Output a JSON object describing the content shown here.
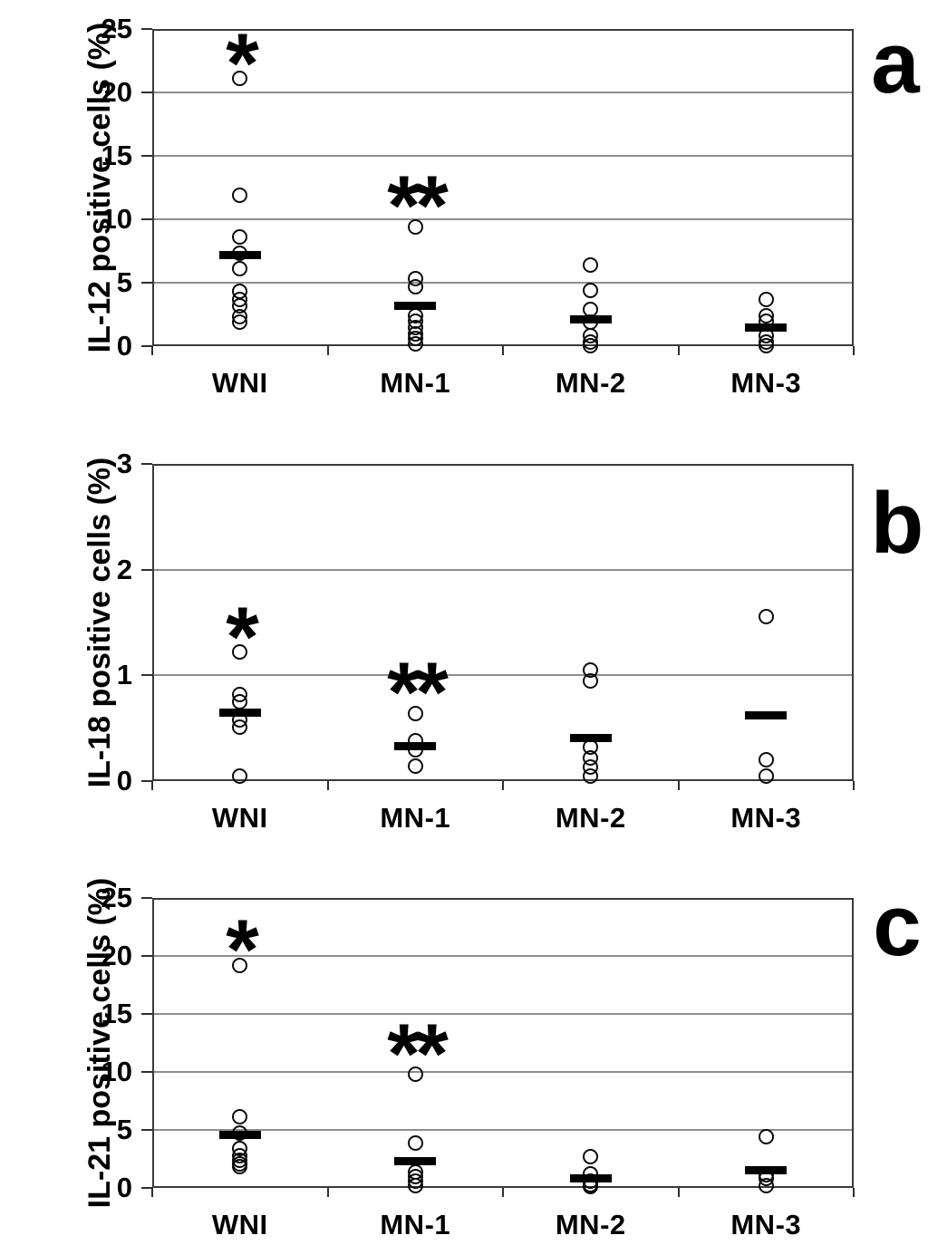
{
  "figure": {
    "background": "#ffffff",
    "categories": [
      "WNI",
      "MN-1",
      "MN-2",
      "MN-3"
    ],
    "panels": [
      {
        "letter": "a",
        "ylabel": "IL-12 positive cells (%)"
      },
      {
        "letter": "b",
        "ylabel": "IL-18 positive cells (%)"
      },
      {
        "letter": "c",
        "ylabel": "IL-21 positive cells (%)"
      }
    ],
    "colors": {
      "point_stroke": "#0a0a0a",
      "median_bar": "#000000",
      "gridline": "#8e8e8e",
      "axis": "#3a3a3a",
      "text": "#000000"
    }
  },
  "chart_data": [
    {
      "type": "scatter",
      "panel": "a",
      "title": "",
      "xlabel": "",
      "ylabel": "IL-12 positive cells (%)",
      "categories": [
        "WNI",
        "MN-1",
        "MN-2",
        "MN-3"
      ],
      "ylim": [
        0,
        25
      ],
      "ytick_interval": 5,
      "yticks": [
        0,
        5,
        10,
        15,
        20,
        25
      ],
      "grid": true,
      "marker": "open-circle",
      "legend": "none",
      "groups": [
        {
          "category": "WNI",
          "values": [
            21.1,
            11.9,
            8.6,
            7.3,
            6.1,
            4.3,
            3.7,
            3.2,
            2.3,
            1.9
          ],
          "median": 7.2,
          "significance": "*"
        },
        {
          "category": "MN-1",
          "values": [
            9.4,
            5.3,
            4.7,
            2.4,
            2.0,
            1.5,
            1.0,
            0.6,
            0.2
          ],
          "median": 3.2,
          "significance": "**"
        },
        {
          "category": "MN-2",
          "values": [
            6.4,
            4.4,
            2.9,
            1.9,
            0.8,
            0.3,
            0.05
          ],
          "median": 2.1,
          "significance": null
        },
        {
          "category": "MN-3",
          "values": [
            3.7,
            2.4,
            2.0,
            0.8,
            0.3,
            0.05
          ],
          "median": 1.5,
          "significance": null
        }
      ]
    },
    {
      "type": "scatter",
      "panel": "b",
      "title": "",
      "xlabel": "",
      "ylabel": "IL-18 positive cells (%)",
      "categories": [
        "WNI",
        "MN-1",
        "MN-2",
        "MN-3"
      ],
      "ylim": [
        0,
        3
      ],
      "ytick_interval": 1,
      "yticks": [
        0,
        1,
        2,
        3
      ],
      "grid": true,
      "marker": "open-circle",
      "legend": "none",
      "groups": [
        {
          "category": "WNI",
          "values": [
            1.22,
            0.82,
            0.75,
            0.58,
            0.51,
            0.05
          ],
          "median": 0.65,
          "significance": "*"
        },
        {
          "category": "MN-1",
          "values": [
            0.64,
            0.38,
            0.3,
            0.14
          ],
          "median": 0.33,
          "significance": "**"
        },
        {
          "category": "MN-2",
          "values": [
            1.05,
            0.95,
            0.32,
            0.22,
            0.13,
            0.05
          ],
          "median": 0.41,
          "significance": null
        },
        {
          "category": "MN-3",
          "values": [
            1.56,
            0.2,
            0.05
          ],
          "median": 0.62,
          "significance": null
        }
      ]
    },
    {
      "type": "scatter",
      "panel": "c",
      "title": "",
      "xlabel": "",
      "ylabel": "IL-21 positive cells (%)",
      "categories": [
        "WNI",
        "MN-1",
        "MN-2",
        "MN-3"
      ],
      "ylim": [
        0,
        25
      ],
      "ytick_interval": 5,
      "yticks": [
        0,
        5,
        10,
        15,
        20,
        25
      ],
      "grid": true,
      "marker": "open-circle",
      "legend": "none",
      "groups": [
        {
          "category": "WNI",
          "values": [
            19.2,
            6.1,
            4.7,
            3.4,
            2.8,
            2.4,
            2.1,
            1.8
          ],
          "median": 4.6,
          "significance": "*"
        },
        {
          "category": "MN-1",
          "values": [
            9.8,
            3.9,
            1.4,
            1.0,
            0.6,
            0.2
          ],
          "median": 2.3,
          "significance": "**"
        },
        {
          "category": "MN-2",
          "values": [
            2.7,
            1.2,
            0.6,
            0.3,
            0.1
          ],
          "median": 0.8,
          "significance": null
        },
        {
          "category": "MN-3",
          "values": [
            4.4,
            1.1,
            0.8,
            0.2
          ],
          "median": 1.5,
          "significance": null
        }
      ]
    }
  ]
}
